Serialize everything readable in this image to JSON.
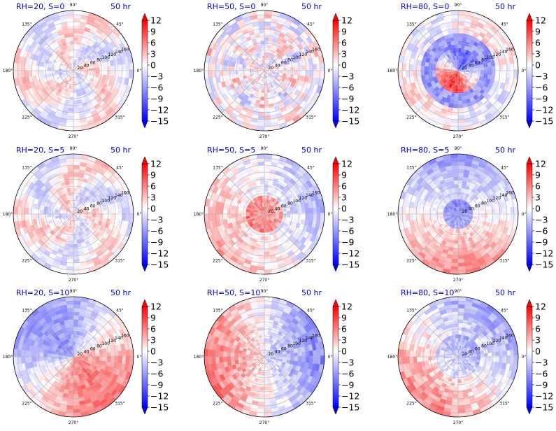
{
  "figure": {
    "colors": {
      "negative": "#0000ff",
      "zero": "#ffffff",
      "positive": "#ff0000",
      "title": "#0000cc",
      "grid": "#b0b0b0",
      "frame": "#000000"
    }
  },
  "chart_data": [
    {
      "type": "heatmap",
      "projection": "polar",
      "title_left": "RH=20, S=0",
      "title_right": "50 hr",
      "field_seed": 1,
      "pattern": "mixed-weak",
      "angle_ticks": [
        "90°",
        "45°",
        "0°",
        "315°",
        "270°",
        "225°",
        "180°",
        "135°"
      ],
      "radial_ticks": [
        "20",
        "40",
        "60",
        "80",
        "100",
        "120",
        "140",
        "160"
      ],
      "colorbar": {
        "ticks": [
          "12",
          "9",
          "6",
          "3",
          "0",
          "−3",
          "−6",
          "−9",
          "−12",
          "−15"
        ],
        "vmin": -15,
        "vmax": 12,
        "extend": "both"
      }
    },
    {
      "type": "heatmap",
      "projection": "polar",
      "title_left": "RH=50, S=0",
      "title_right": "50 hr",
      "field_seed": 2,
      "pattern": "mixed-speckled",
      "angle_ticks": [
        "90°",
        "45°",
        "0°",
        "315°",
        "270°",
        "225°",
        "180°",
        "135°"
      ],
      "radial_ticks": [
        "20",
        "40",
        "60",
        "80",
        "100",
        "120",
        "140",
        "160"
      ],
      "colorbar": {
        "ticks": [
          "12",
          "9",
          "6",
          "3",
          "0",
          "−3",
          "−6",
          "−9",
          "−12",
          "−15"
        ],
        "vmin": -15,
        "vmax": 12,
        "extend": "both"
      }
    },
    {
      "type": "heatmap",
      "projection": "polar",
      "title_left": "RH=80, S=0",
      "title_right": "50 hr",
      "field_seed": 3,
      "pattern": "core-red-blue-ring",
      "angle_ticks": [
        "90°",
        "45°",
        "0°",
        "315°",
        "270°",
        "225°",
        "180°",
        "135°"
      ],
      "radial_ticks": [
        "20",
        "40",
        "60",
        "80",
        "100",
        "120",
        "140",
        "160"
      ],
      "colorbar": {
        "ticks": [
          "12",
          "9",
          "6",
          "3",
          "0",
          "−3",
          "−6",
          "−9",
          "−12",
          "−15"
        ],
        "vmin": -15,
        "vmax": 12,
        "extend": "both"
      }
    },
    {
      "type": "heatmap",
      "projection": "polar",
      "title_left": "RH=20, S=5",
      "title_right": "50 hr",
      "field_seed": 4,
      "pattern": "mixed-weak",
      "angle_ticks": [
        "90°",
        "45°",
        "0°",
        "315°",
        "270°",
        "225°",
        "180°",
        "135°"
      ],
      "radial_ticks": [
        "20",
        "40",
        "60",
        "80",
        "100",
        "120",
        "140",
        "160"
      ],
      "colorbar": {
        "ticks": [
          "12",
          "9",
          "6",
          "3",
          "0",
          "−3",
          "−6",
          "−9",
          "−12",
          "−15"
        ],
        "vmin": -15,
        "vmax": 12,
        "extend": "both"
      }
    },
    {
      "type": "heatmap",
      "projection": "polar",
      "title_left": "RH=50, S=5",
      "title_right": "50 hr",
      "field_seed": 5,
      "pattern": "red-southwest-blue-north",
      "angle_ticks": [
        "90°",
        "45°",
        "0°",
        "315°",
        "270°",
        "225°",
        "180°",
        "135°"
      ],
      "radial_ticks": [
        "20",
        "40",
        "60",
        "80",
        "100",
        "120",
        "140",
        "160"
      ],
      "colorbar": {
        "ticks": [
          "12",
          "9",
          "6",
          "3",
          "0",
          "−3",
          "−6",
          "−9",
          "−12",
          "−15"
        ],
        "vmin": -15,
        "vmax": 12,
        "extend": "both"
      }
    },
    {
      "type": "heatmap",
      "projection": "polar",
      "title_left": "RH=80, S=5",
      "title_right": "50 hr",
      "field_seed": 6,
      "pattern": "blue-north-red-south",
      "angle_ticks": [
        "90°",
        "45°",
        "0°",
        "315°",
        "270°",
        "225°",
        "180°",
        "135°"
      ],
      "radial_ticks": [
        "20",
        "40",
        "60",
        "80",
        "100",
        "120",
        "140",
        "160"
      ],
      "colorbar": {
        "ticks": [
          "12",
          "9",
          "6",
          "3",
          "0",
          "−3",
          "−6",
          "−9",
          "−12",
          "−15"
        ],
        "vmin": -15,
        "vmax": 12,
        "extend": "both"
      }
    },
    {
      "type": "heatmap",
      "projection": "polar",
      "title_left": "RH=20, S=10",
      "title_right": "50 hr",
      "field_seed": 7,
      "pattern": "blue-northwest-red-southeast",
      "angle_ticks": [
        "90°",
        "45°",
        "0°",
        "315°",
        "270°",
        "225°",
        "180°",
        "135°"
      ],
      "radial_ticks": [
        "20",
        "40",
        "60",
        "80",
        "100",
        "120",
        "140",
        "160"
      ],
      "colorbar": {
        "ticks": [
          "12",
          "9",
          "6",
          "3",
          "0",
          "−3",
          "−6",
          "−9",
          "−12",
          "−15"
        ],
        "vmin": -15,
        "vmax": 12,
        "extend": "both"
      }
    },
    {
      "type": "heatmap",
      "projection": "polar",
      "title_left": "RH=50, S=10",
      "title_right": "50 hr",
      "field_seed": 8,
      "pattern": "red-west-blue-northeast",
      "angle_ticks": [
        "90°",
        "45°",
        "0°",
        "315°",
        "270°",
        "225°",
        "180°",
        "135°"
      ],
      "radial_ticks": [
        "20",
        "40",
        "60",
        "80",
        "100",
        "120",
        "140",
        "160"
      ],
      "colorbar": {
        "ticks": [
          "12",
          "9",
          "6",
          "3",
          "0",
          "−3",
          "−6",
          "−9",
          "−12",
          "−15"
        ],
        "vmin": -15,
        "vmax": 12,
        "extend": "both"
      }
    },
    {
      "type": "heatmap",
      "projection": "polar",
      "title_left": "RH=80, S=10",
      "title_right": "50 hr",
      "field_seed": 9,
      "pattern": "blue-northeast-red-south",
      "angle_ticks": [
        "90°",
        "45°",
        "0°",
        "315°",
        "270°",
        "225°",
        "180°",
        "135°"
      ],
      "radial_ticks": [
        "20",
        "40",
        "60",
        "80",
        "100",
        "120",
        "140",
        "160"
      ],
      "colorbar": {
        "ticks": [
          "12",
          "9",
          "6",
          "3",
          "0",
          "−3",
          "−6",
          "−9",
          "−12",
          "−15"
        ],
        "vmin": -15,
        "vmax": 12,
        "extend": "both"
      }
    }
  ]
}
